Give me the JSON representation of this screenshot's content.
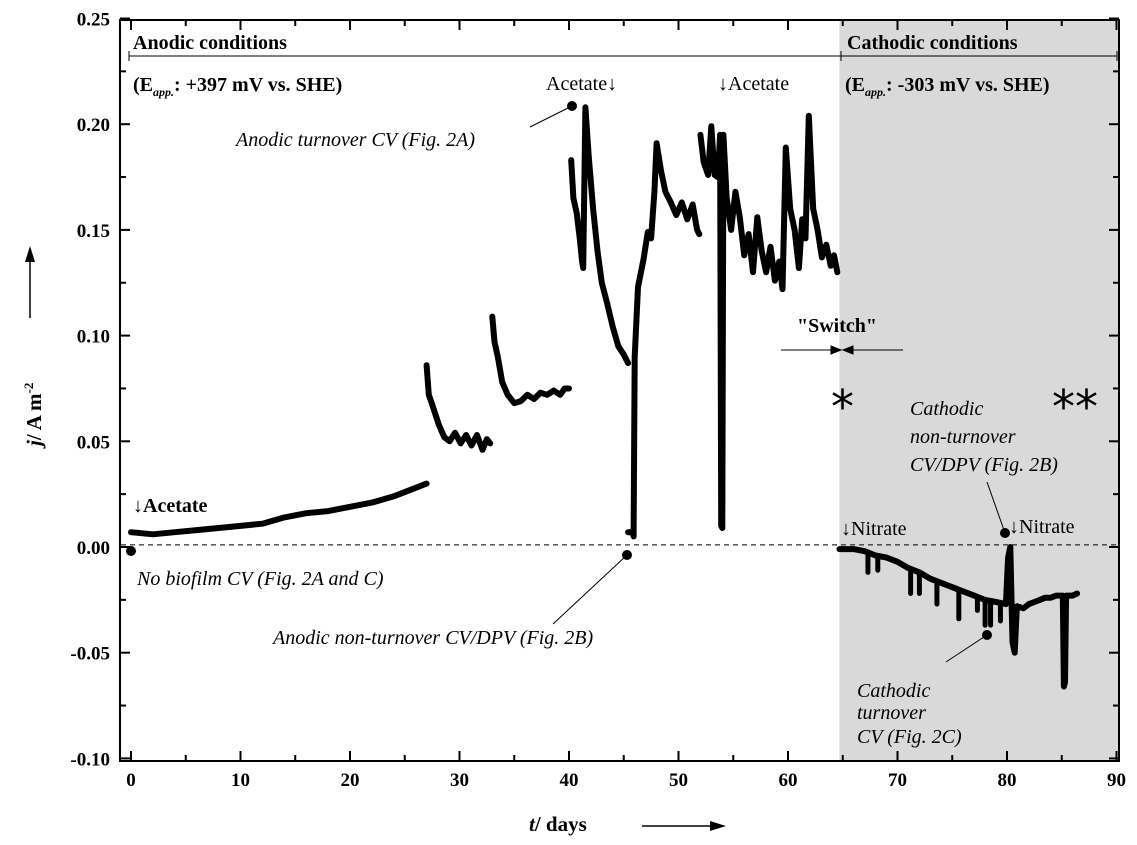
{
  "chart_data": {
    "type": "line",
    "xlabel": "t/ days",
    "ylabel": "j/ A m-2",
    "xlim": [
      0,
      90
    ],
    "ylim": [
      -0.1,
      0.25
    ],
    "x_ticks": [
      "0",
      "10",
      "20",
      "30",
      "40",
      "50",
      "60",
      "70",
      "80",
      "90"
    ],
    "y_ticks": [
      "-0.10",
      "-0.05",
      "0.00",
      "0.05",
      "0.10",
      "0.15",
      "0.20",
      "0.25"
    ],
    "shaded_region": {
      "x_start": 64.7,
      "x_end": 90,
      "color": "#d9d9d9"
    },
    "baseline_y": 0.001,
    "series": [
      {
        "points": [
          [
            0,
            0.007
          ],
          [
            2,
            0.006
          ],
          [
            4,
            0.007
          ],
          [
            6,
            0.008
          ],
          [
            8,
            0.009
          ],
          [
            10,
            0.01
          ],
          [
            12,
            0.011
          ],
          [
            14,
            0.014
          ],
          [
            16,
            0.016
          ],
          [
            18,
            0.017
          ],
          [
            20,
            0.019
          ],
          [
            22,
            0.021
          ],
          [
            24,
            0.024
          ],
          [
            26,
            0.028
          ],
          [
            27,
            0.03
          ]
        ]
      },
      {
        "points": [
          [
            27.0,
            0.086
          ],
          [
            27.2,
            0.072
          ],
          [
            27.6,
            0.066
          ],
          [
            28.1,
            0.058
          ],
          [
            28.6,
            0.052
          ],
          [
            29.1,
            0.05
          ],
          [
            29.6,
            0.054
          ],
          [
            30.1,
            0.049
          ],
          [
            30.6,
            0.053
          ],
          [
            31.1,
            0.048
          ],
          [
            31.6,
            0.053
          ],
          [
            32.1,
            0.046
          ],
          [
            32.5,
            0.051
          ],
          [
            32.8,
            0.049
          ]
        ]
      },
      {
        "points": [
          [
            33.0,
            0.109
          ],
          [
            33.2,
            0.097
          ],
          [
            33.5,
            0.09
          ],
          [
            33.9,
            0.078
          ],
          [
            34.4,
            0.072
          ],
          [
            35.0,
            0.068
          ],
          [
            35.6,
            0.069
          ],
          [
            36.2,
            0.072
          ],
          [
            36.8,
            0.07
          ],
          [
            37.4,
            0.073
          ],
          [
            38.0,
            0.072
          ],
          [
            38.6,
            0.074
          ],
          [
            39.2,
            0.072
          ],
          [
            39.6,
            0.075
          ],
          [
            40.0,
            0.075
          ]
        ]
      },
      {
        "points": [
          [
            40.2,
            0.183
          ],
          [
            40.4,
            0.165
          ],
          [
            40.7,
            0.158
          ],
          [
            41.0,
            0.145
          ],
          [
            41.2,
            0.135
          ],
          [
            41.3,
            0.132
          ],
          [
            41.5,
            0.208
          ],
          [
            41.8,
            0.185
          ],
          [
            42.2,
            0.16
          ],
          [
            42.6,
            0.14
          ],
          [
            43.0,
            0.125
          ],
          [
            43.5,
            0.115
          ],
          [
            44.0,
            0.104
          ],
          [
            44.5,
            0.095
          ],
          [
            45.0,
            0.091
          ],
          [
            45.4,
            0.087
          ]
        ]
      },
      {
        "points": [
          [
            45.4,
            0.007
          ],
          [
            45.8,
            0.007
          ],
          [
            45.9,
            0.005
          ],
          [
            46.0,
            0.09
          ],
          [
            46.3,
            0.123
          ],
          [
            46.8,
            0.136
          ],
          [
            47.2,
            0.149
          ],
          [
            47.5,
            0.146
          ],
          [
            47.8,
            0.168
          ],
          [
            48.0,
            0.191
          ],
          [
            48.4,
            0.178
          ],
          [
            48.8,
            0.168
          ],
          [
            49.3,
            0.163
          ],
          [
            49.8,
            0.157
          ],
          [
            50.3,
            0.163
          ],
          [
            50.8,
            0.155
          ],
          [
            51.3,
            0.162
          ],
          [
            51.7,
            0.15
          ],
          [
            51.9,
            0.148
          ]
        ]
      },
      {
        "points": [
          [
            52.0,
            0.195
          ],
          [
            52.3,
            0.182
          ],
          [
            52.7,
            0.176
          ],
          [
            53.0,
            0.199
          ],
          [
            53.3,
            0.176
          ],
          [
            53.6,
            0.175
          ],
          [
            53.8,
            0.195
          ],
          [
            53.9,
            0.01
          ],
          [
            54.0,
            0.009
          ],
          [
            54.1,
            0.195
          ],
          [
            54.4,
            0.165
          ],
          [
            54.8,
            0.15
          ],
          [
            55.2,
            0.168
          ],
          [
            55.6,
            0.156
          ],
          [
            56.0,
            0.138
          ],
          [
            56.4,
            0.148
          ],
          [
            56.8,
            0.13
          ],
          [
            57.2,
            0.156
          ],
          [
            57.6,
            0.14
          ],
          [
            58.0,
            0.13
          ],
          [
            58.4,
            0.142
          ],
          [
            58.8,
            0.126
          ],
          [
            59.2,
            0.135
          ],
          [
            59.5,
            0.122
          ],
          [
            59.8,
            0.189
          ],
          [
            60.2,
            0.16
          ],
          [
            60.6,
            0.15
          ],
          [
            61.0,
            0.132
          ],
          [
            61.3,
            0.155
          ],
          [
            61.6,
            0.146
          ],
          [
            61.9,
            0.204
          ],
          [
            62.3,
            0.16
          ],
          [
            62.7,
            0.15
          ],
          [
            63.1,
            0.137
          ],
          [
            63.5,
            0.143
          ],
          [
            63.9,
            0.133
          ],
          [
            64.2,
            0.138
          ],
          [
            64.5,
            0.13
          ]
        ]
      },
      {
        "points": [
          [
            64.7,
            -0.001
          ],
          [
            66.0,
            -0.001
          ],
          [
            67.0,
            -0.002
          ],
          [
            68.0,
            -0.004
          ],
          [
            69.0,
            -0.005
          ],
          [
            70.0,
            -0.007
          ],
          [
            71.0,
            -0.01
          ],
          [
            72.0,
            -0.012
          ],
          [
            73.0,
            -0.015
          ],
          [
            74.0,
            -0.017
          ],
          [
            75.0,
            -0.019
          ],
          [
            76.0,
            -0.021
          ],
          [
            77.0,
            -0.023
          ],
          [
            78.0,
            -0.025
          ],
          [
            79.0,
            -0.026
          ],
          [
            79.9,
            -0.027
          ],
          [
            80.1,
            -0.005
          ],
          [
            80.3,
            0.0
          ],
          [
            80.5,
            -0.045
          ],
          [
            80.7,
            -0.05
          ],
          [
            80.9,
            -0.028
          ],
          [
            81.5,
            -0.029
          ],
          [
            82.0,
            -0.027
          ],
          [
            82.5,
            -0.026
          ],
          [
            83.0,
            -0.025
          ],
          [
            83.5,
            -0.024
          ],
          [
            84.0,
            -0.024
          ],
          [
            84.5,
            -0.023
          ],
          [
            85.1,
            -0.023
          ],
          [
            85.2,
            -0.066
          ],
          [
            85.3,
            -0.064
          ],
          [
            85.4,
            -0.023
          ],
          [
            86.0,
            -0.023
          ],
          [
            86.4,
            -0.022
          ]
        ]
      }
    ],
    "spikes": [
      [
        67.3,
        -0.012
      ],
      [
        68.2,
        -0.011
      ],
      [
        71.2,
        -0.022
      ],
      [
        72.0,
        -0.022
      ],
      [
        73.6,
        -0.027
      ],
      [
        75.6,
        -0.034
      ],
      [
        77.3,
        -0.03
      ],
      [
        78.0,
        -0.037
      ],
      [
        78.5,
        -0.037
      ],
      [
        79.4,
        -0.035
      ]
    ]
  },
  "annotations": {
    "anodic_header": "Anodic conditions",
    "cathodic_header": "Cathodic conditions",
    "anodic_potential_prefix": "(E",
    "anodic_potential_sub": "app.",
    "anodic_potential_suffix": ": +397 mV vs. SHE)",
    "cathodic_potential_prefix": "(E",
    "cathodic_potential_sub": "app.",
    "cathodic_potential_suffix": ": -303 mV vs. SHE)",
    "acetate_1": "↓Acetate",
    "acetate_2": "Acetate↓",
    "acetate_3": "↓Acetate",
    "nitrate_1": "↓Nitrate",
    "nitrate_2": "↓Nitrate",
    "switch": "\"Switch\"",
    "star_single": "*",
    "star_double": "**",
    "no_biofilm_cv": "No biofilm CV (Fig. 2A and C)",
    "anodic_turnover_cv": "Anodic turnover CV (Fig. 2A)",
    "anodic_nonturnover_cv": "Anodic non-turnover CV/DPV (Fig. 2B)",
    "cathodic_nonturnover_lines": [
      "Cathodic",
      "non-turnover",
      "CV/DPV (Fig. 2B)"
    ],
    "cathodic_turnover_lines": [
      "Cathodic",
      "turnover",
      "CV (Fig. 2C)"
    ]
  },
  "axis_titles": {
    "x_italic": "t",
    "x_plain": "/ days",
    "y_italic": "j",
    "y_plain": "/ A m",
    "y_sup": "-2"
  }
}
